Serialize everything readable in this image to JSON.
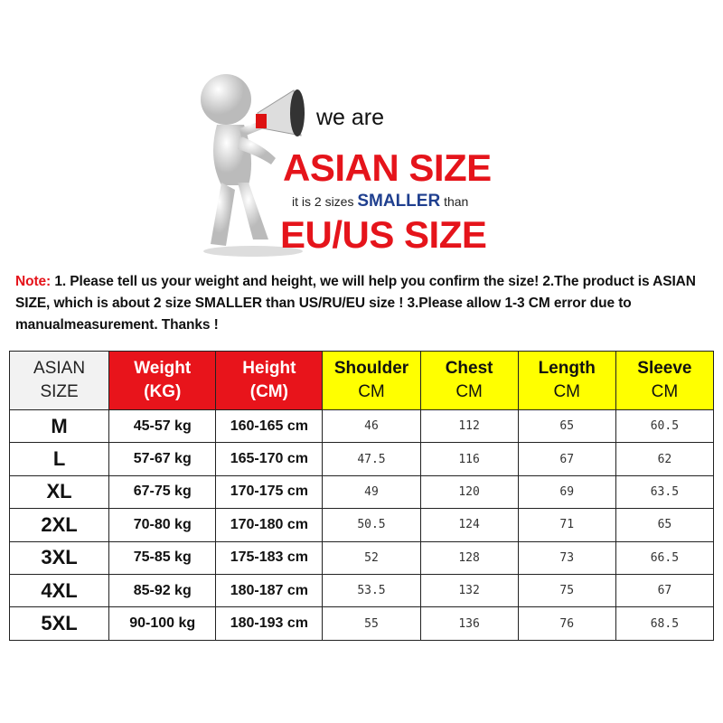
{
  "banner": {
    "we_are": "we are",
    "asian_size": "ASIAN SIZE",
    "it_is": "it is 2 sizes",
    "smaller": "SMALLER",
    "than": "than",
    "eu_us_size": "EU/US SIZE"
  },
  "note": {
    "label": "Note:",
    "text": " 1. Please tell us your weight and height, we will help you confirm the size!  2.The product is ASIAN SIZE, which is about 2 size SMALLER than US/RU/EU size ! 3.Please allow 1-3 CM error due to manualmeasurement.  Thanks !"
  },
  "colors": {
    "red": "#e8141b",
    "yellow": "#ffff00",
    "navy": "#1f3f8f"
  },
  "table": {
    "headers": [
      {
        "l1": "ASIAN",
        "l2": "SIZE"
      },
      {
        "l1": "Weight",
        "l2": "(KG)"
      },
      {
        "l1": "Height",
        "l2": "(CM)"
      },
      {
        "l1": "Shoulder",
        "l2": "CM"
      },
      {
        "l1": "Chest",
        "l2": "CM"
      },
      {
        "l1": "Length",
        "l2": "CM"
      },
      {
        "l1": "Sleeve",
        "l2": "CM"
      }
    ],
    "rows": [
      [
        "M",
        "45-57 kg",
        "160-165 cm",
        "46",
        "112",
        "65",
        "60.5"
      ],
      [
        "L",
        "57-67  kg",
        "165-170 cm",
        "47.5",
        "116",
        "67",
        "62"
      ],
      [
        "XL",
        "67-75  kg",
        "170-175 cm",
        "49",
        "120",
        "69",
        "63.5"
      ],
      [
        "2XL",
        "70-80  kg",
        "170-180 cm",
        "50.5",
        "124",
        "71",
        "65"
      ],
      [
        "3XL",
        "75-85  kg",
        "175-183 cm",
        "52",
        "128",
        "73",
        "66.5"
      ],
      [
        "4XL",
        "85-92  kg",
        "180-187 cm",
        "53.5",
        "132",
        "75",
        "67"
      ],
      [
        "5XL",
        "90-100  kg",
        "180-193 cm",
        "55",
        "136",
        "76",
        "68.5"
      ]
    ]
  }
}
